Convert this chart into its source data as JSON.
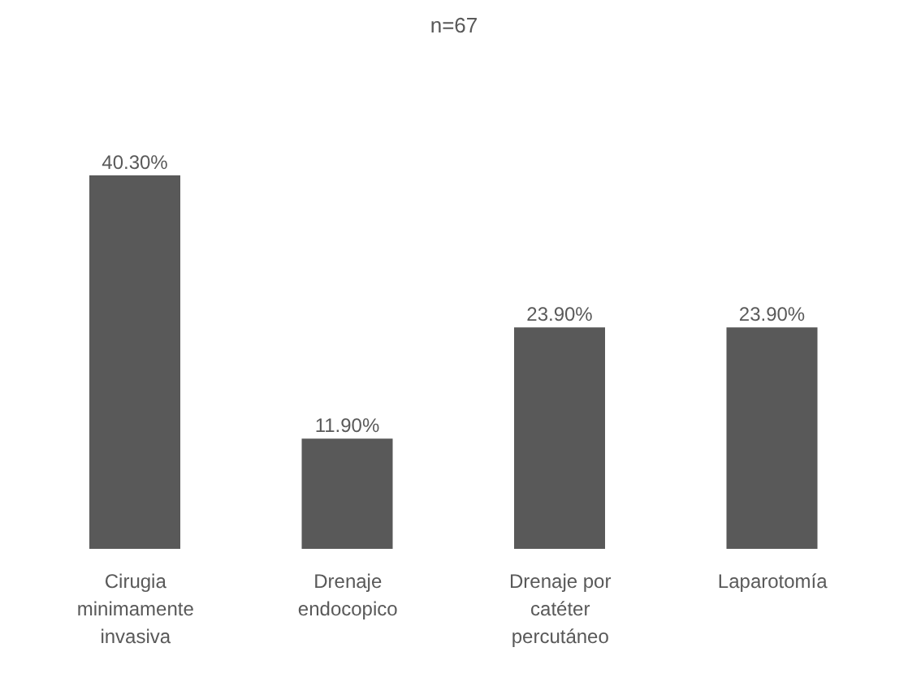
{
  "chart_data": {
    "type": "bar",
    "title": "n=67",
    "categories": [
      "Cirugia minimamente invasiva",
      "Drenaje endocopico",
      "Drenaje por catéter percutáneo",
      "Laparotomía"
    ],
    "values": [
      40.3,
      11.9,
      23.9,
      23.9
    ],
    "value_labels": [
      "40.30%",
      "11.90%",
      "23.90%",
      "23.90%"
    ],
    "color": "#595959"
  }
}
